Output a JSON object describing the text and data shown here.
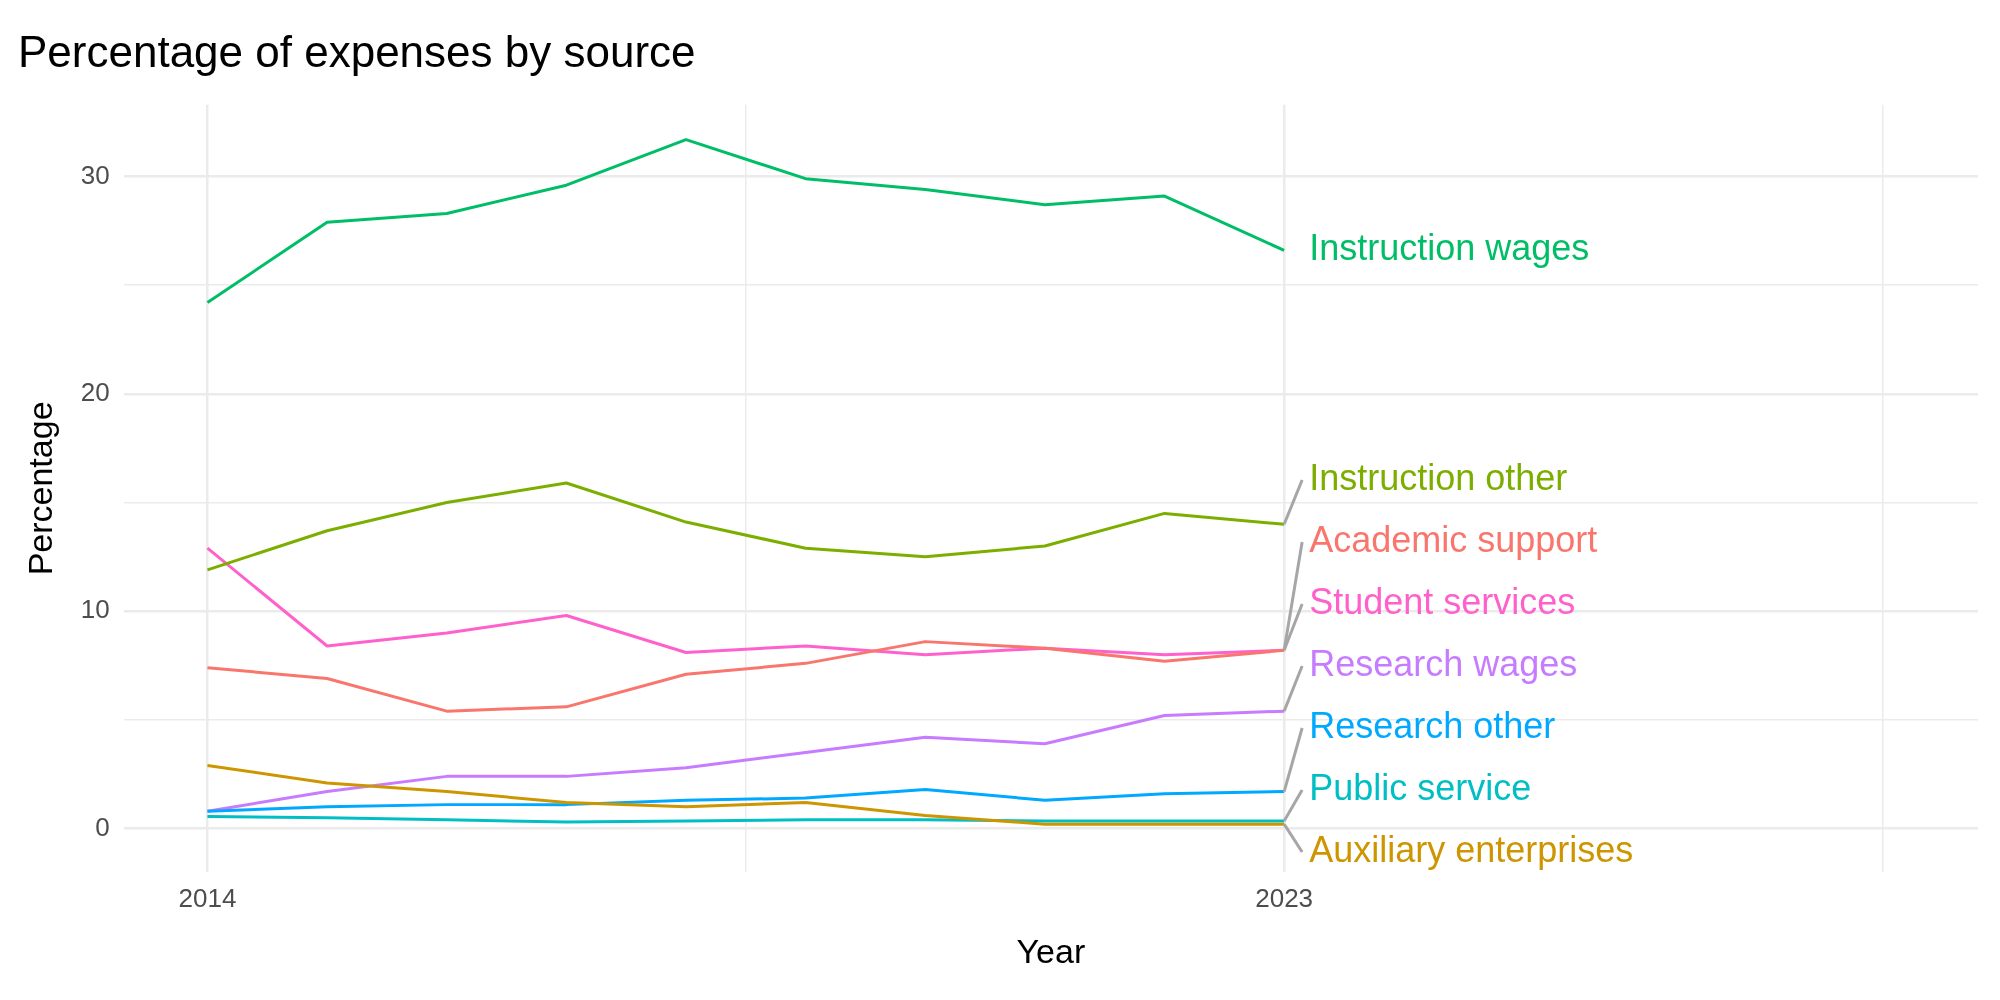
{
  "chart_data": {
    "type": "line",
    "title": "Percentage of expenses by source",
    "xlabel": "Year",
    "ylabel": "Percentage",
    "x": [
      2014,
      2015,
      2016,
      2017,
      2018,
      2019,
      2020,
      2021,
      2022,
      2023
    ],
    "series": [
      {
        "name": "Academic support",
        "color": "#f8766d",
        "values": [
          7.4,
          6.9,
          5.4,
          5.6,
          7.1,
          7.6,
          8.6,
          8.3,
          7.7,
          8.2
        ]
      },
      {
        "name": "Auxiliary enterprises",
        "color": "#cd9600",
        "values": [
          2.9,
          2.1,
          1.7,
          1.2,
          1.0,
          1.2,
          0.6,
          0.2,
          0.2,
          0.2
        ]
      },
      {
        "name": "Instruction other",
        "color": "#7cae00",
        "values": [
          11.9,
          13.7,
          15.0,
          15.9,
          14.1,
          12.9,
          12.5,
          13.0,
          14.5,
          14.0
        ]
      },
      {
        "name": "Instruction wages",
        "color": "#00be67",
        "values": [
          24.2,
          27.9,
          28.3,
          29.6,
          31.7,
          29.9,
          29.4,
          28.7,
          29.1,
          26.6
        ]
      },
      {
        "name": "Public service",
        "color": "#00bfc4",
        "values": [
          0.55,
          0.5,
          0.4,
          0.3,
          0.35,
          0.4,
          0.4,
          0.35,
          0.35,
          0.35
        ]
      },
      {
        "name": "Research other",
        "color": "#00a9ff",
        "values": [
          0.8,
          1.0,
          1.1,
          1.1,
          1.3,
          1.4,
          1.8,
          1.3,
          1.6,
          1.7
        ]
      },
      {
        "name": "Research wages",
        "color": "#c77cff",
        "values": [
          0.8,
          1.7,
          2.4,
          2.4,
          2.8,
          3.5,
          4.2,
          3.9,
          5.2,
          5.4
        ]
      },
      {
        "name": "Student services",
        "color": "#ff61cc",
        "values": [
          12.9,
          8.4,
          9.0,
          9.8,
          8.1,
          8.4,
          8.0,
          8.3,
          8.0,
          8.2
        ]
      }
    ],
    "xlim": [
      2013.3,
      2028.8
    ],
    "xticks": [
      2014,
      {
        "value": 2018.5,
        "label": null
      },
      2023,
      {
        "value": 2028,
        "label": null
      }
    ],
    "ylim": [
      -2,
      33.3
    ],
    "yticks": [
      0,
      {
        "value": 5,
        "label": null
      },
      10,
      {
        "value": 15,
        "label": null
      },
      20,
      {
        "value": 25,
        "label": null
      },
      30
    ],
    "grid": true,
    "legend": false,
    "marker": "none",
    "line_style": "solid"
  }
}
